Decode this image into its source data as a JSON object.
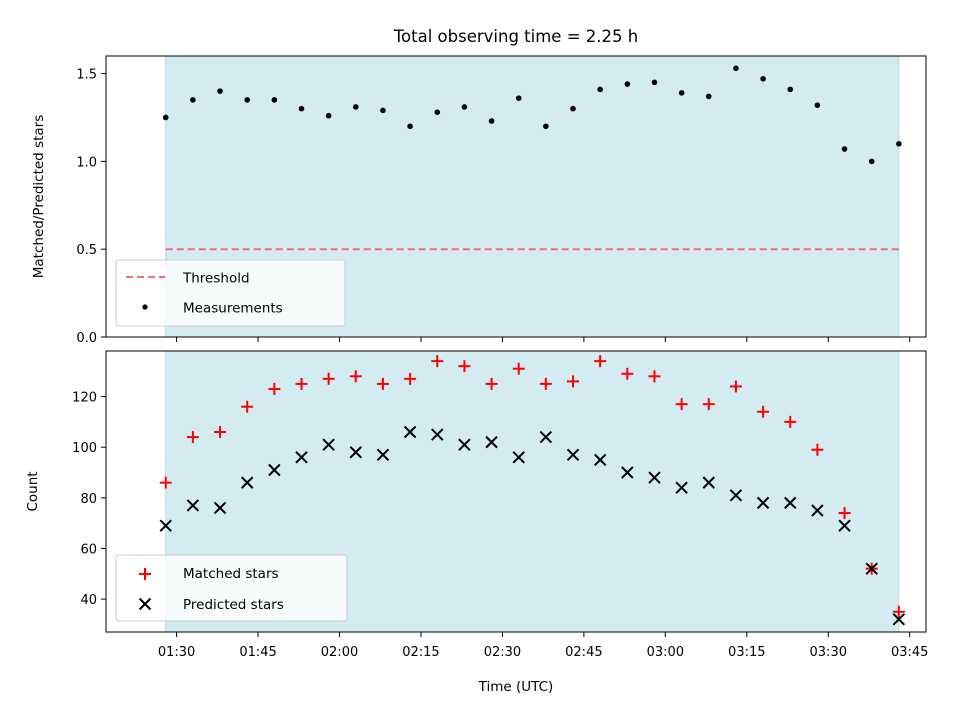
{
  "chart_data": [
    {
      "type": "scatter",
      "title": "Total observing time = 2.25 h",
      "ylabel": "Matched/Predicted stars",
      "xlabel": "",
      "ylim": [
        0,
        1.6
      ],
      "yticks": [
        "0.0",
        "0.5",
        "1.0",
        "1.5"
      ],
      "xlim": [
        "01:17",
        "03:48"
      ],
      "x_tick_times": [
        "01:30",
        "01:45",
        "02:00",
        "02:15",
        "02:30",
        "02:45",
        "03:00",
        "03:15",
        "03:30",
        "03:45"
      ],
      "x_tick_labels_shown": false,
      "shaded_span": {
        "start": "01:28",
        "end": "03:43",
        "color": "#d4ebf1"
      },
      "legend": {
        "placement": "lower-left",
        "entries": [
          "Threshold",
          "Measurements"
        ]
      },
      "series": [
        {
          "name": "Threshold",
          "style": "dashed-line",
          "color": "#f07070",
          "x": [
            "01:28",
            "03:43"
          ],
          "values": [
            0.5,
            0.5
          ]
        },
        {
          "name": "Measurements",
          "style": "dot",
          "color": "#000000",
          "x": [
            "01:28",
            "01:33",
            "01:38",
            "01:43",
            "01:48",
            "01:53",
            "01:58",
            "02:03",
            "02:08",
            "02:13",
            "02:18",
            "02:23",
            "02:28",
            "02:33",
            "02:38",
            "02:43",
            "02:48",
            "02:53",
            "02:58",
            "03:03",
            "03:08",
            "03:13",
            "03:18",
            "03:23",
            "03:28",
            "03:33",
            "03:38",
            "03:43"
          ],
          "values": [
            1.25,
            1.35,
            1.4,
            1.35,
            1.35,
            1.3,
            1.26,
            1.31,
            1.29,
            1.2,
            1.28,
            1.31,
            1.23,
            1.36,
            1.2,
            1.3,
            1.41,
            1.44,
            1.45,
            1.39,
            1.37,
            1.53,
            1.47,
            1.41,
            1.32,
            1.07,
            1.0,
            1.1
          ]
        }
      ]
    },
    {
      "type": "scatter",
      "title": "",
      "ylabel": "Count",
      "xlabel": "Time (UTC)",
      "ylim": [
        27,
        138
      ],
      "yticks": [
        "40",
        "60",
        "80",
        "100",
        "120"
      ],
      "xlim": [
        "01:17",
        "03:48"
      ],
      "x_tick_times": [
        "01:30",
        "01:45",
        "02:00",
        "02:15",
        "02:30",
        "02:45",
        "03:00",
        "03:15",
        "03:30",
        "03:45"
      ],
      "x_tick_labels_shown": true,
      "shaded_span": {
        "start": "01:28",
        "end": "03:43",
        "color": "#d4ebf1"
      },
      "legend": {
        "placement": "lower-left",
        "entries": [
          "Matched stars",
          "Predicted stars"
        ]
      },
      "series": [
        {
          "name": "Matched stars",
          "marker": "plus",
          "color": "#ff0000",
          "x": [
            "01:28",
            "01:33",
            "01:38",
            "01:43",
            "01:48",
            "01:53",
            "01:58",
            "02:03",
            "02:08",
            "02:13",
            "02:18",
            "02:23",
            "02:28",
            "02:33",
            "02:38",
            "02:43",
            "02:48",
            "02:53",
            "02:58",
            "03:03",
            "03:08",
            "03:13",
            "03:18",
            "03:23",
            "03:28",
            "03:33",
            "03:38",
            "03:43"
          ],
          "values": [
            86,
            104,
            106,
            116,
            123,
            125,
            127,
            128,
            125,
            127,
            134,
            132,
            125,
            131,
            125,
            126,
            134,
            129,
            128,
            117,
            117,
            124,
            114,
            110,
            99,
            74,
            52,
            35
          ]
        },
        {
          "name": "Predicted stars",
          "marker": "x",
          "color": "#000000",
          "x": [
            "01:28",
            "01:33",
            "01:38",
            "01:43",
            "01:48",
            "01:53",
            "01:58",
            "02:03",
            "02:08",
            "02:13",
            "02:18",
            "02:23",
            "02:28",
            "02:33",
            "02:38",
            "02:43",
            "02:48",
            "02:53",
            "02:58",
            "03:03",
            "03:08",
            "03:13",
            "03:18",
            "03:23",
            "03:28",
            "03:33",
            "03:38",
            "03:43"
          ],
          "values": [
            69,
            77,
            76,
            86,
            91,
            96,
            101,
            98,
            97,
            106,
            105,
            101,
            102,
            96,
            104,
            97,
            95,
            90,
            88,
            84,
            86,
            81,
            78,
            78,
            75,
            69,
            52,
            32
          ]
        }
      ]
    }
  ]
}
